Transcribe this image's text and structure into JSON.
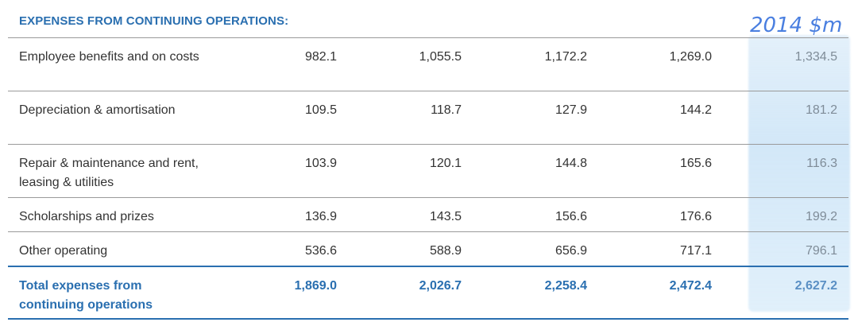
{
  "header": "EXPENSES FROM CONTINUING OPERATIONS:",
  "annotation": "2014 $m",
  "rows": [
    {
      "label": "Employee benefits and on costs",
      "values": [
        "982.1",
        "1,055.5",
        "1,172.2",
        "1,269.0",
        "1,334.5"
      ]
    },
    {
      "label": "Depreciation & amortisation",
      "values": [
        "109.5",
        "118.7",
        "127.9",
        "144.2",
        "181.2"
      ]
    },
    {
      "label": "Repair & maintenance and rent, leasing & utilities",
      "values": [
        "103.9",
        "120.1",
        "144.8",
        "165.6",
        "116.3"
      ]
    },
    {
      "label": "Scholarships and prizes",
      "values": [
        "136.9",
        "143.5",
        "156.6",
        "176.6",
        "199.2"
      ]
    },
    {
      "label": "Other operating",
      "values": [
        "536.6",
        "588.9",
        "656.9",
        "717.1",
        "796.1"
      ]
    }
  ],
  "total": {
    "label": "Total expenses from continuing operations",
    "values": [
      "1,869.0",
      "2,026.7",
      "2,258.4",
      "2,472.4",
      "2,627.2"
    ]
  }
}
